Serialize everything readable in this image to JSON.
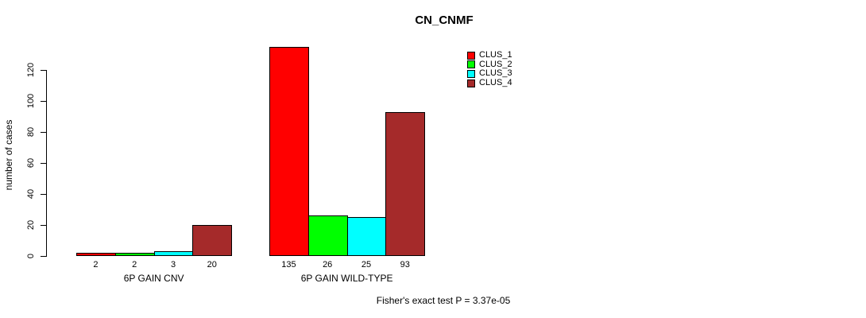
{
  "chart_data": {
    "type": "bar",
    "title": "CN_CNMF",
    "ylabel": "number of cases",
    "xlabel": "",
    "annotation": "Fisher's exact test P = 3.37e-05",
    "categories": [
      "6P GAIN CNV",
      "6P GAIN WILD-TYPE"
    ],
    "series": [
      {
        "name": "CLUS_1",
        "color": "#ff0000",
        "values": [
          2,
          135
        ]
      },
      {
        "name": "CLUS_2",
        "color": "#00ff00",
        "values": [
          2,
          26
        ]
      },
      {
        "name": "CLUS_3",
        "color": "#00ffff",
        "values": [
          3,
          25
        ]
      },
      {
        "name": "CLUS_4",
        "color": "#a52a2a",
        "values": [
          20,
          93
        ]
      }
    ],
    "yticks": [
      0,
      20,
      40,
      60,
      80,
      100,
      120
    ],
    "ylim": [
      0,
      140
    ],
    "bar_value_labels": [
      [
        2,
        2,
        3,
        20
      ],
      [
        135,
        26,
        25,
        93
      ]
    ],
    "legend": {
      "entries": [
        "CLUS_1",
        "CLUS_2",
        "CLUS_3",
        "CLUS_4"
      ],
      "position": "upper-right"
    },
    "grid": false,
    "background": "#ffffff",
    "bar_border_color": "#000000"
  }
}
